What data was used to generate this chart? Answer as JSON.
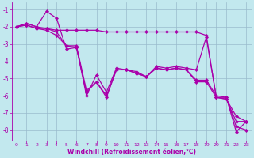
{
  "xlabel": "Windchill (Refroidissement éolien,°C)",
  "xlim": [
    -0.5,
    23.5
  ],
  "ylim": [
    -8.6,
    -0.6
  ],
  "yticks": [
    -8,
    -7,
    -6,
    -5,
    -4,
    -3,
    -2,
    -1
  ],
  "xticks": [
    0,
    1,
    2,
    3,
    4,
    5,
    6,
    7,
    8,
    9,
    10,
    11,
    12,
    13,
    14,
    15,
    16,
    17,
    18,
    19,
    20,
    21,
    22,
    23
  ],
  "bg_color": "#c2e8ee",
  "line_color": "#aa00aa",
  "grid_color": "#99bbcc",
  "line1_x": [
    0,
    1,
    2,
    3,
    4,
    5,
    6,
    7,
    8,
    9,
    10,
    11,
    12,
    13,
    14,
    15,
    16,
    17,
    18,
    19,
    20,
    21,
    22,
    23
  ],
  "line1_y": [
    -2.0,
    -1.8,
    -2.0,
    -1.1,
    -1.5,
    -3.3,
    -3.2,
    -6.0,
    -4.8,
    -5.8,
    -4.4,
    -4.5,
    -4.6,
    -4.9,
    -4.3,
    -4.4,
    -4.3,
    -4.4,
    -4.5,
    -2.6,
    -6.1,
    -6.2,
    -7.2,
    -7.5
  ],
  "line2_x": [
    0,
    1,
    2,
    3,
    4,
    5,
    6,
    7,
    8,
    9,
    10,
    11,
    12,
    13,
    14,
    15,
    16,
    17,
    18,
    19,
    20,
    21,
    22,
    23
  ],
  "line2_y": [
    -2.0,
    -1.8,
    -2.0,
    -2.1,
    -2.3,
    -3.1,
    -3.2,
    -5.8,
    -5.2,
    -6.1,
    -4.5,
    -4.5,
    -4.7,
    -4.9,
    -4.4,
    -4.5,
    -4.4,
    -4.5,
    -5.2,
    -5.2,
    -6.1,
    -6.2,
    -7.5,
    -7.5
  ],
  "line3_x": [
    0,
    1,
    2,
    3,
    4,
    5,
    6,
    7,
    8,
    9,
    10,
    11,
    12,
    13,
    14,
    15,
    16,
    17,
    18,
    19,
    20,
    21,
    22,
    23
  ],
  "line3_y": [
    -2.0,
    -1.9,
    -2.1,
    -2.2,
    -2.5,
    -3.1,
    -3.1,
    -5.7,
    -5.2,
    -6.0,
    -4.5,
    -4.5,
    -4.7,
    -4.9,
    -4.4,
    -4.5,
    -4.4,
    -4.5,
    -5.1,
    -5.1,
    -6.0,
    -6.1,
    -8.1,
    -7.5
  ],
  "line_flat_x": [
    0,
    1,
    2,
    3,
    4,
    5,
    6,
    7,
    8,
    9,
    10,
    11,
    12,
    13,
    14,
    15,
    16,
    17,
    18,
    19,
    20,
    21,
    22,
    23
  ],
  "line_flat_y": [
    -2.0,
    -1.9,
    -2.1,
    -2.1,
    -2.2,
    -2.2,
    -2.2,
    -2.2,
    -2.2,
    -2.3,
    -2.3,
    -2.3,
    -2.3,
    -2.3,
    -2.3,
    -2.3,
    -2.3,
    -2.3,
    -2.3,
    -2.5,
    -6.1,
    -6.1,
    -7.8,
    -8.0
  ]
}
